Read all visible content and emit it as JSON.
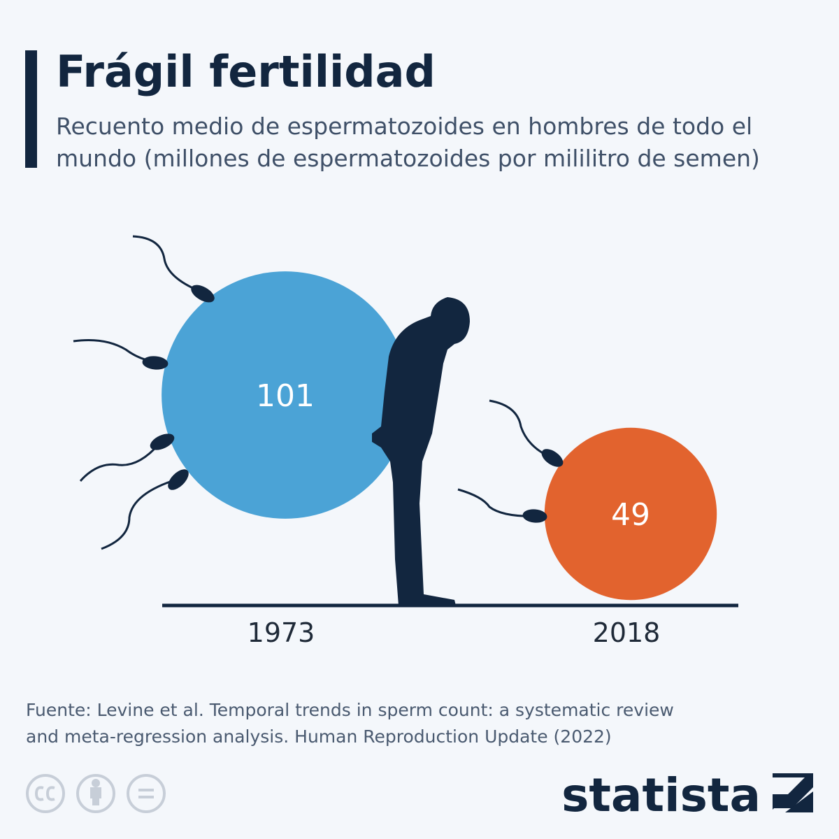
{
  "chart_data": {
    "type": "bubble",
    "title": "Frágil fertilidad",
    "subtitle_lines": [
      "Recuento medio de espermatozoides en hombres de todo el",
      "mundo (millones de espermatozoides por mililitro de semen)"
    ],
    "categories": [
      "1973",
      "2018"
    ],
    "values": [
      101,
      49
    ],
    "colors": [
      "#4ba3d6",
      "#e2632e"
    ],
    "source_lines": [
      "Fuente: Levine et al. Temporal trends in sperm count: a systematic review",
      "and meta-regression analysis. Human Reproduction Update (2022)"
    ],
    "brand": "statista"
  }
}
